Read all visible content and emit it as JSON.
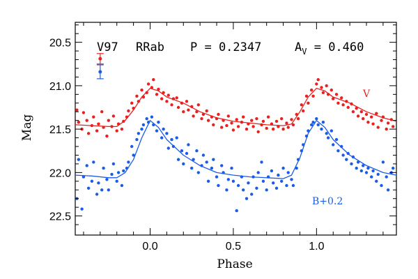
{
  "chart_data": {
    "type": "scatter",
    "title": "",
    "header": {
      "star": "V97",
      "type": "RRab",
      "period": "P = 0.2347",
      "amplitude_prefix": "A",
      "amplitude_sub": "V",
      "amplitude_value": " = 0.460"
    },
    "xlabel": "Phase",
    "ylabel": "Mag",
    "xlim": [
      -0.45,
      1.48
    ],
    "ylim": [
      22.72,
      20.27
    ],
    "y_inverted": true,
    "x_ticks": [
      0.0,
      0.5,
      1.0
    ],
    "x_tick_labels": [
      "0.0",
      "0.5",
      "1.0"
    ],
    "y_ticks": [
      20.5,
      21.0,
      21.5,
      22.0,
      22.5
    ],
    "y_tick_labels": [
      "20.5",
      "21.0",
      "21.5",
      "22.0",
      "22.5"
    ],
    "grid": false,
    "series": [
      {
        "name": "V",
        "color": "#e8201f",
        "label_position": "right",
        "curve": {
          "x": [
            -0.45,
            -0.35,
            -0.25,
            -0.2,
            -0.15,
            -0.1,
            -0.05,
            0.0,
            0.05,
            0.1,
            0.2,
            0.3,
            0.4,
            0.5,
            0.6,
            0.7,
            0.8,
            0.85,
            0.9,
            0.95,
            1.0,
            1.05,
            1.1,
            1.2,
            1.3,
            1.4,
            1.48
          ],
          "y": [
            21.45,
            21.46,
            21.47,
            21.47,
            21.4,
            21.28,
            21.13,
            21.03,
            21.06,
            21.13,
            21.2,
            21.3,
            21.37,
            21.41,
            21.43,
            21.45,
            21.46,
            21.44,
            21.3,
            21.13,
            21.03,
            21.06,
            21.13,
            21.2,
            21.3,
            21.37,
            21.41
          ]
        },
        "points": {
          "x": [
            -0.44,
            -0.43,
            -0.41,
            -0.4,
            -0.38,
            -0.37,
            -0.35,
            -0.34,
            -0.32,
            -0.31,
            -0.29,
            -0.28,
            -0.26,
            -0.25,
            -0.23,
            -0.22,
            -0.2,
            -0.19,
            -0.17,
            -0.16,
            -0.14,
            -0.13,
            -0.11,
            -0.1,
            -0.08,
            -0.07,
            -0.05,
            -0.04,
            -0.02,
            -0.01,
            0.01,
            0.02,
            0.04,
            0.05,
            0.07,
            0.08,
            0.1,
            0.11,
            0.13,
            0.14,
            0.16,
            0.17,
            0.19,
            0.2,
            0.22,
            0.23,
            0.25,
            0.26,
            0.28,
            0.29,
            0.31,
            0.32,
            0.34,
            0.35,
            0.37,
            0.38,
            0.4,
            0.41,
            0.43,
            0.44,
            0.46,
            0.47,
            0.49,
            0.5,
            0.52,
            0.53,
            0.55,
            0.56,
            0.58,
            0.59,
            0.61,
            0.62,
            0.64,
            0.65,
            0.67,
            0.68,
            0.7,
            0.71,
            0.73,
            0.74,
            0.76,
            0.77,
            0.79,
            0.8,
            0.82,
            0.83,
            0.85,
            0.86,
            0.88,
            0.89,
            0.91,
            0.92,
            0.94,
            0.95,
            0.97,
            0.98,
            1.0,
            1.01,
            1.03,
            1.04,
            1.06,
            1.07,
            1.09,
            1.1,
            1.12,
            1.13,
            1.15,
            1.16,
            1.18,
            1.19,
            1.21,
            1.22,
            1.24,
            1.25,
            1.27,
            1.28,
            1.3,
            1.31,
            1.33,
            1.34,
            1.36,
            1.37,
            1.39,
            1.4,
            1.42,
            1.43,
            1.45,
            1.46
          ],
          "y": [
            21.28,
            21.42,
            21.5,
            21.31,
            21.4,
            21.55,
            21.46,
            21.36,
            21.52,
            21.44,
            21.3,
            21.48,
            21.58,
            21.4,
            21.47,
            21.35,
            21.52,
            21.44,
            21.5,
            21.41,
            21.36,
            21.29,
            21.2,
            21.26,
            21.12,
            21.18,
            21.05,
            21.13,
            21.08,
            20.98,
            21.02,
            20.93,
            21.1,
            21.04,
            21.15,
            21.08,
            21.18,
            21.11,
            21.22,
            21.15,
            21.14,
            21.25,
            21.2,
            21.3,
            21.18,
            21.28,
            21.24,
            21.35,
            21.3,
            21.22,
            21.38,
            21.33,
            21.29,
            21.4,
            21.36,
            21.45,
            21.38,
            21.33,
            21.48,
            21.4,
            21.46,
            21.35,
            21.43,
            21.51,
            21.39,
            21.47,
            21.42,
            21.36,
            21.5,
            21.44,
            21.4,
            21.47,
            21.38,
            21.53,
            21.45,
            21.41,
            21.49,
            21.36,
            21.44,
            21.5,
            21.41,
            21.47,
            21.38,
            21.5,
            21.43,
            21.48,
            21.39,
            21.45,
            21.33,
            21.38,
            21.22,
            21.29,
            21.12,
            21.2,
            21.05,
            21.12,
            20.98,
            20.93,
            21.02,
            21.08,
            21.0,
            21.1,
            21.05,
            21.15,
            21.1,
            21.2,
            21.14,
            21.22,
            21.18,
            21.25,
            21.21,
            21.3,
            21.26,
            21.35,
            21.3,
            21.38,
            21.33,
            21.42,
            21.36,
            21.44,
            21.32,
            21.48,
            21.4,
            21.36,
            21.5,
            21.43,
            21.39,
            21.47
          ]
        }
      },
      {
        "name": "B+0.2",
        "color": "#1a5ce8",
        "label_position": "bottom-right",
        "curve": {
          "x": [
            -0.45,
            -0.35,
            -0.25,
            -0.2,
            -0.15,
            -0.1,
            -0.05,
            0.0,
            0.05,
            0.1,
            0.2,
            0.3,
            0.4,
            0.5,
            0.6,
            0.7,
            0.8,
            0.85,
            0.9,
            0.95,
            1.0,
            1.05,
            1.1,
            1.2,
            1.3,
            1.4,
            1.48
          ],
          "y": [
            22.03,
            22.04,
            22.06,
            22.06,
            22.0,
            21.85,
            21.6,
            21.4,
            21.48,
            21.62,
            21.8,
            21.92,
            22.0,
            22.03,
            22.05,
            22.06,
            22.07,
            22.03,
            21.83,
            21.55,
            21.4,
            21.48,
            21.62,
            21.8,
            21.92,
            22.0,
            22.03
          ]
        },
        "points": {
          "x": [
            -0.44,
            -0.43,
            -0.41,
            -0.4,
            -0.38,
            -0.37,
            -0.35,
            -0.34,
            -0.32,
            -0.31,
            -0.29,
            -0.28,
            -0.26,
            -0.25,
            -0.23,
            -0.22,
            -0.2,
            -0.19,
            -0.17,
            -0.16,
            -0.14,
            -0.13,
            -0.11,
            -0.1,
            -0.08,
            -0.07,
            -0.05,
            -0.04,
            -0.02,
            -0.01,
            0.01,
            0.02,
            0.04,
            0.05,
            0.07,
            0.08,
            0.1,
            0.11,
            0.13,
            0.14,
            0.16,
            0.17,
            0.19,
            0.2,
            0.22,
            0.23,
            0.25,
            0.26,
            0.28,
            0.29,
            0.31,
            0.32,
            0.34,
            0.35,
            0.37,
            0.38,
            0.4,
            0.41,
            0.43,
            0.44,
            0.46,
            0.47,
            0.49,
            0.5,
            0.52,
            0.53,
            0.55,
            0.56,
            0.58,
            0.59,
            0.61,
            0.62,
            0.64,
            0.65,
            0.67,
            0.68,
            0.7,
            0.71,
            0.73,
            0.74,
            0.76,
            0.77,
            0.79,
            0.8,
            0.82,
            0.83,
            0.85,
            0.86,
            0.88,
            0.89,
            0.91,
            0.92,
            0.94,
            0.95,
            0.97,
            0.98,
            1.0,
            1.01,
            1.03,
            1.04,
            1.06,
            1.07,
            1.09,
            1.1,
            1.12,
            1.13,
            1.15,
            1.16,
            1.18,
            1.19,
            1.21,
            1.22,
            1.24,
            1.25,
            1.27,
            1.28,
            1.3,
            1.31,
            1.33,
            1.34,
            1.36,
            1.37,
            1.39,
            1.4,
            1.42,
            1.43,
            1.45,
            1.46
          ],
          "y": [
            22.3,
            21.85,
            22.42,
            22.05,
            21.92,
            22.18,
            22.1,
            21.88,
            22.25,
            22.12,
            22.2,
            21.95,
            22.08,
            22.2,
            22.02,
            21.9,
            22.1,
            22.0,
            22.15,
            21.98,
            21.95,
            21.88,
            21.7,
            21.8,
            21.62,
            21.55,
            21.5,
            21.45,
            21.38,
            21.42,
            21.36,
            21.45,
            21.52,
            21.42,
            21.6,
            21.5,
            21.55,
            21.72,
            21.62,
            21.7,
            21.6,
            21.85,
            21.75,
            21.9,
            21.78,
            21.68,
            21.95,
            21.85,
            21.75,
            22.0,
            21.92,
            21.8,
            21.88,
            22.1,
            21.95,
            21.85,
            22.05,
            22.15,
            21.92,
            22.0,
            22.2,
            22.08,
            21.95,
            22.1,
            22.44,
            22.15,
            22.05,
            22.2,
            22.3,
            22.12,
            22.25,
            22.05,
            22.18,
            22.0,
            21.88,
            22.1,
            22.2,
            22.05,
            21.98,
            22.12,
            22.18,
            22.03,
            22.1,
            21.95,
            22.15,
            22.0,
            22.08,
            22.15,
            21.95,
            21.85,
            21.75,
            21.68,
            21.58,
            21.52,
            21.45,
            21.42,
            21.38,
            21.45,
            21.5,
            21.42,
            21.55,
            21.6,
            21.52,
            21.68,
            21.62,
            21.75,
            21.7,
            21.8,
            21.85,
            21.78,
            21.9,
            21.82,
            21.95,
            21.88,
            21.98,
            21.92,
            22.0,
            21.95,
            22.05,
            21.98,
            22.1,
            22.02,
            22.15,
            21.88,
            22.05,
            22.2,
            22.0,
            21.95
          ]
        }
      }
    ],
    "error_bars": [
      {
        "series": "V",
        "x": -0.3,
        "y": 20.69,
        "err": 0.06
      },
      {
        "series": "B+0.2",
        "x": -0.3,
        "y": 20.84,
        "err": 0.08
      }
    ]
  }
}
